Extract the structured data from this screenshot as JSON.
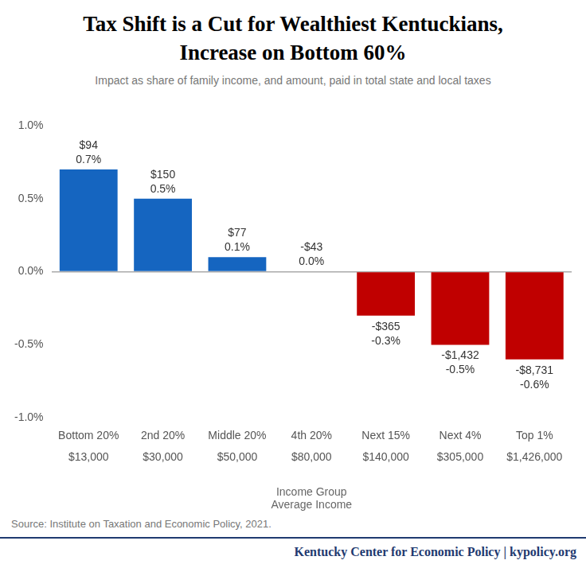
{
  "chart_data": {
    "type": "bar",
    "title": [
      "Tax Shift is a Cut for Wealthiest Kentuckians,",
      "Increase on Bottom 60%"
    ],
    "subtitle": "Impact as share of family income, and amount, paid in total state and local taxes",
    "categories": [
      "Bottom 20%",
      "2nd 20%",
      "Middle 20%",
      "4th 20%",
      "Next 15%",
      "Next 4%",
      "Top 1%"
    ],
    "average_incomes": [
      "$13,000",
      "$30,000",
      "$50,000",
      "$80,000",
      "$140,000",
      "$305,000",
      "$1,426,000"
    ],
    "values": [
      0.7,
      0.5,
      0.1,
      0.0,
      -0.3,
      -0.5,
      -0.6
    ],
    "value_labels": [
      "0.7%",
      "0.5%",
      "0.1%",
      "0.0%",
      "-0.3%",
      "-0.5%",
      "-0.6%"
    ],
    "amounts": [
      "$94",
      "$150",
      "$77",
      "-$43",
      "-$365",
      "-$1,432",
      "-$8,731"
    ],
    "colors": [
      "#1565c0",
      "#1565c0",
      "#1565c0",
      "#1565c0",
      "#c00000",
      "#c00000",
      "#c00000"
    ],
    "x_label": [
      "Income Group",
      "Average Income"
    ],
    "ylim": [
      -1.0,
      1.0
    ],
    "yticks": [
      {
        "value": -1.0,
        "label": "-1.0%"
      },
      {
        "value": -0.5,
        "label": "-0.5%"
      },
      {
        "value": 0.0,
        "label": "0.0%"
      },
      {
        "value": 0.5,
        "label": "0.5%"
      },
      {
        "value": 1.0,
        "label": "1.0%"
      }
    ],
    "grid": false,
    "data_labels": true,
    "source": "Source: Institute on Taxation and Economic Policy, 2021.",
    "footer": "Kentucky Center for Economic Policy | kypolicy.org"
  }
}
